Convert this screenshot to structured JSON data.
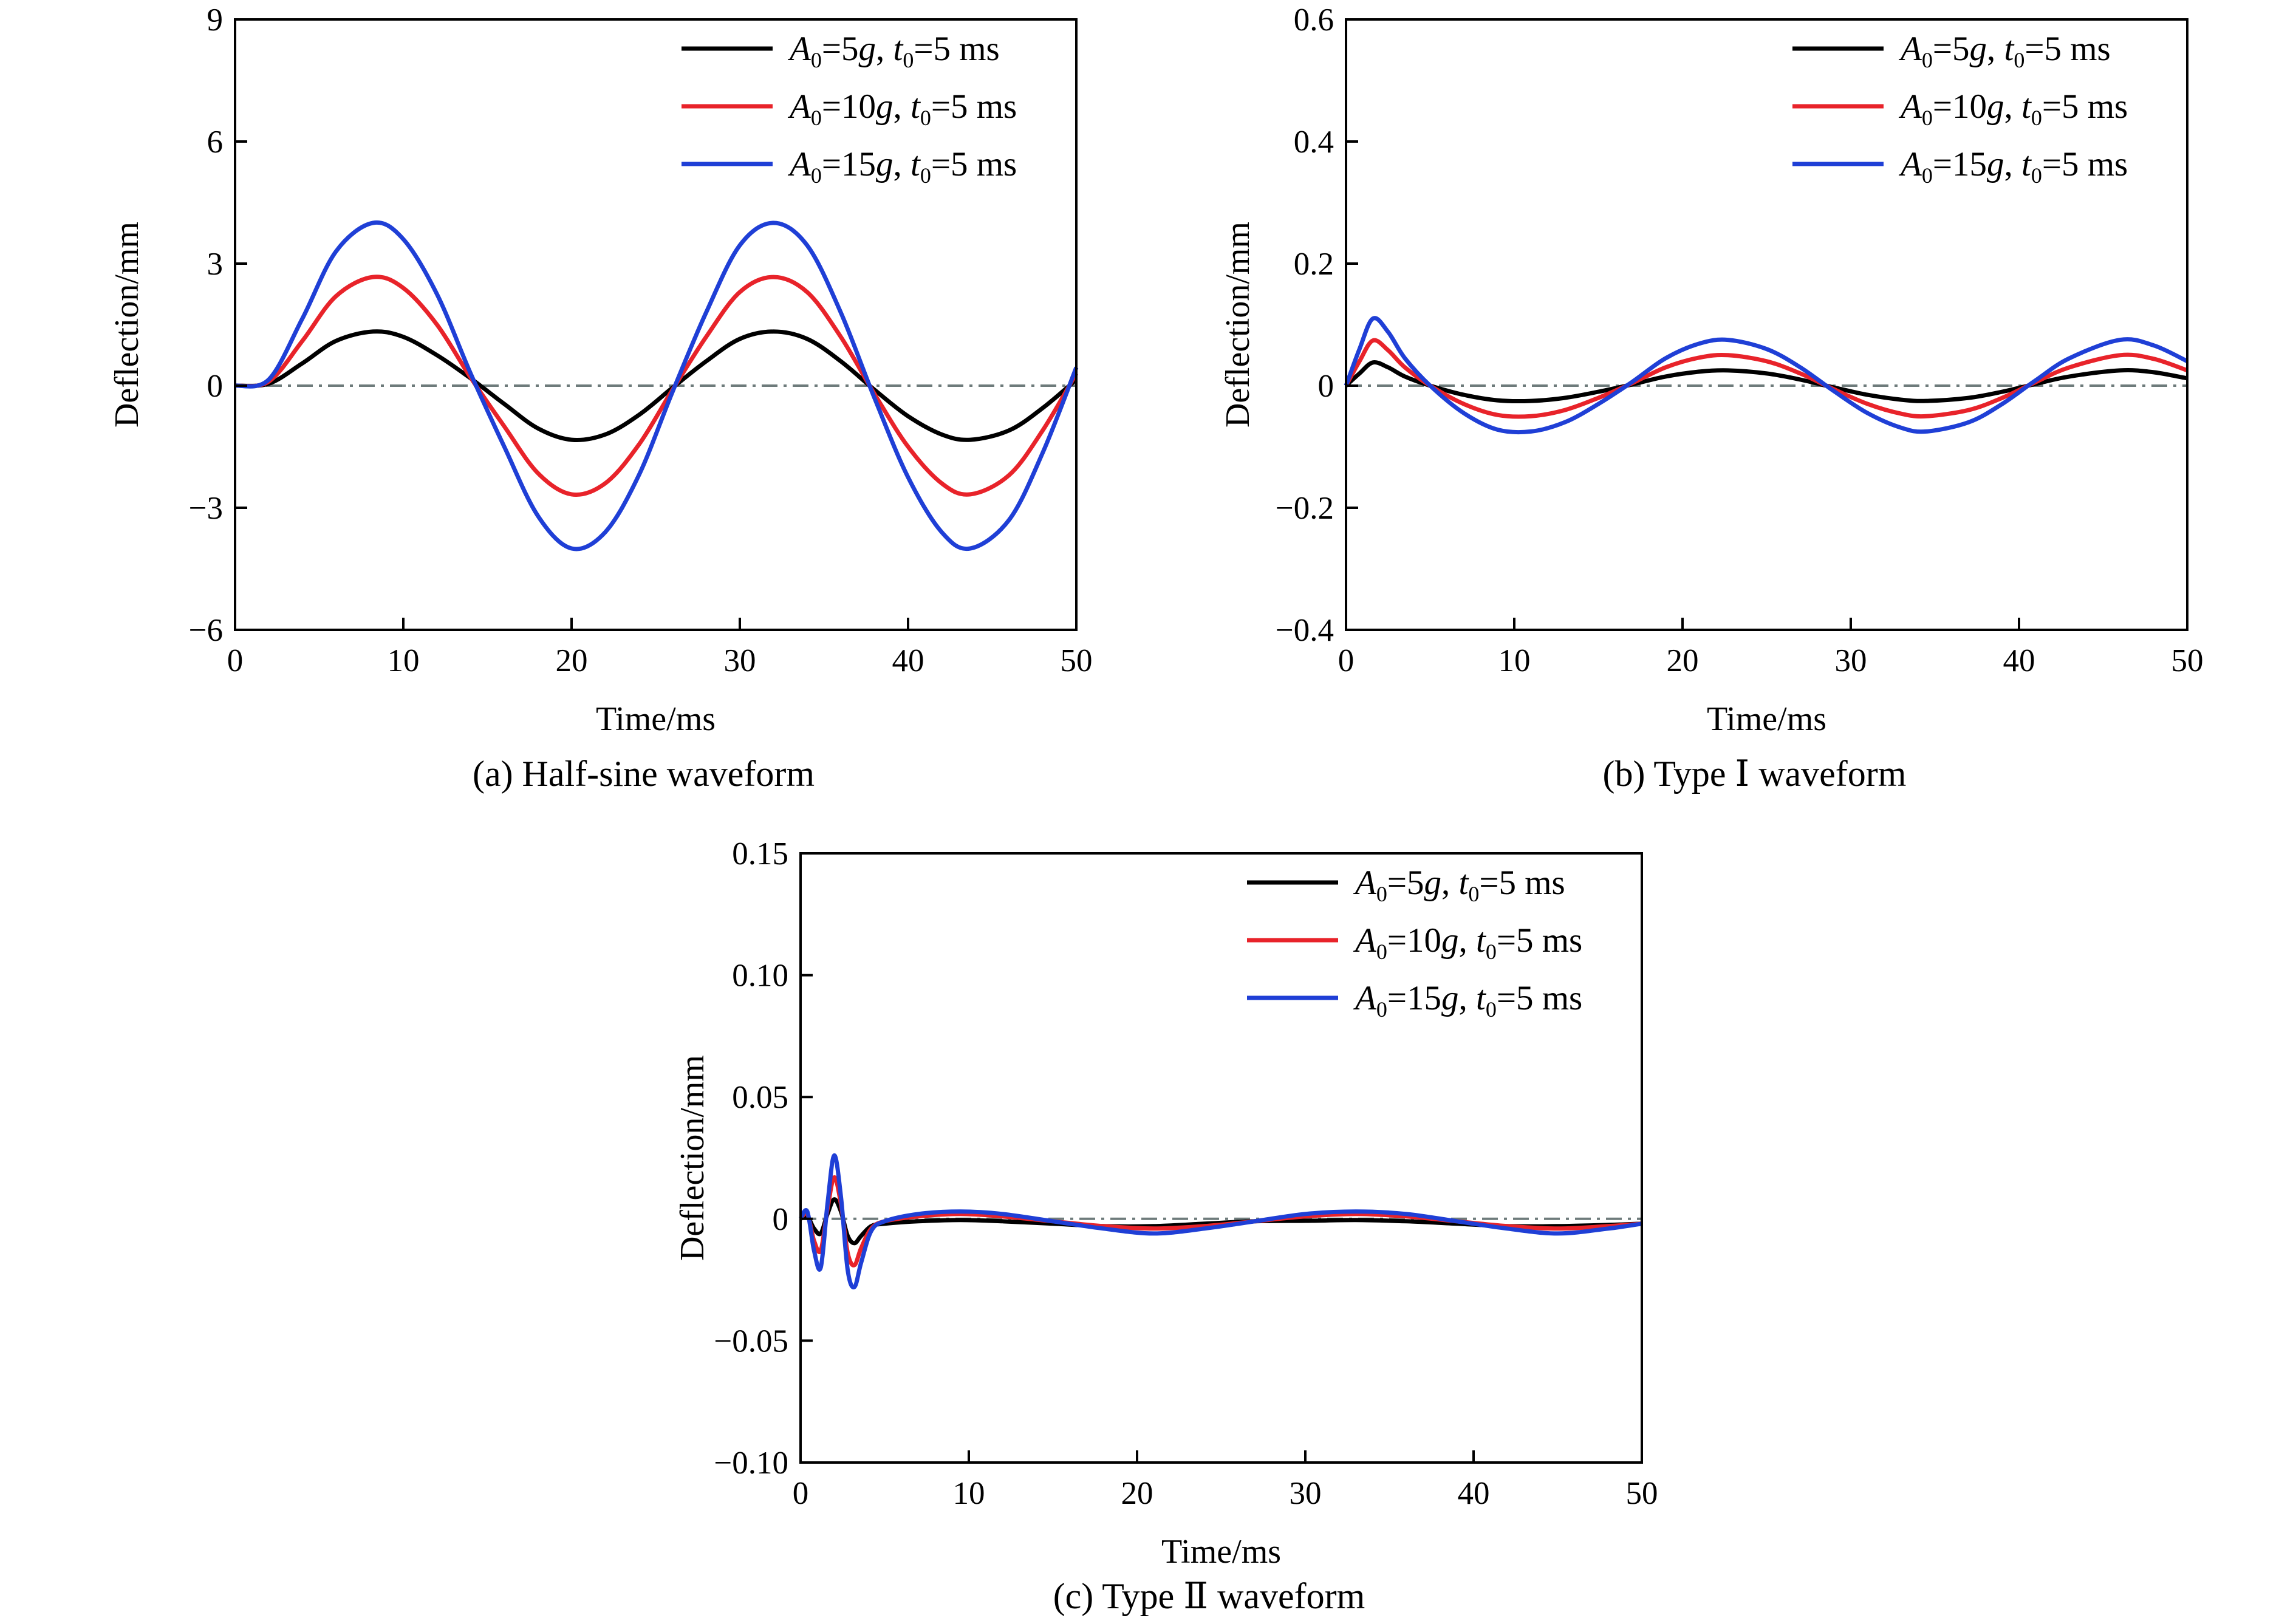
{
  "chart_data": [
    {
      "type": "line",
      "caption": "(a) Half-sine waveform",
      "xlabel": "Time/ms",
      "ylabel": "Deflection/mm",
      "xlim": [
        0,
        50
      ],
      "ylim": [
        -6,
        9
      ],
      "xticks": [
        0,
        10,
        20,
        30,
        40,
        50
      ],
      "yticks": [
        -6,
        -3,
        0,
        3,
        6,
        9
      ],
      "ytick_labels": [
        "−6",
        "−3",
        "0",
        "3",
        "6",
        "9"
      ],
      "xtick_labels": [
        "0",
        "10",
        "20",
        "30",
        "40",
        "50"
      ],
      "zero_line": true,
      "legend_position": "top-right",
      "series": [
        {
          "name": "A0=5g, t0=5 ms",
          "color": "#000000",
          "x": [
            0,
            2,
            4,
            6,
            8.2,
            10,
            12,
            14,
            16,
            18,
            20,
            22,
            24,
            26,
            28,
            30,
            32,
            34,
            36,
            38,
            40,
            42,
            43.7,
            46,
            48,
            50
          ],
          "y": [
            0,
            0.05,
            0.55,
            1.1,
            1.33,
            1.2,
            0.75,
            0.18,
            -0.45,
            -1.05,
            -1.33,
            -1.2,
            -0.72,
            -0.05,
            0.6,
            1.15,
            1.33,
            1.15,
            0.6,
            -0.1,
            -0.75,
            -1.2,
            -1.33,
            -1.1,
            -0.55,
            0.15
          ]
        },
        {
          "name": "A0=10g, t0=5 ms",
          "color": "#e8232a",
          "x": [
            0,
            2,
            4,
            6,
            8.2,
            10,
            12,
            14,
            16,
            18,
            20,
            22,
            24,
            26,
            28,
            30,
            32,
            34,
            36,
            38,
            40,
            42,
            43.7,
            46,
            48,
            50
          ],
          "y": [
            0,
            0.1,
            1.1,
            2.2,
            2.67,
            2.4,
            1.5,
            0.2,
            -1.0,
            -2.15,
            -2.67,
            -2.4,
            -1.45,
            -0.1,
            1.2,
            2.3,
            2.67,
            2.3,
            1.2,
            -0.2,
            -1.5,
            -2.4,
            -2.67,
            -2.2,
            -1.1,
            0.3
          ]
        },
        {
          "name": "A0=15g, t0=5 ms",
          "color": "#1f3fd6",
          "x": [
            0,
            2,
            4,
            6,
            8.2,
            10,
            12,
            14,
            16,
            18,
            20,
            22,
            24,
            26,
            28,
            30,
            32,
            34,
            36,
            38,
            40,
            42,
            43.7,
            46,
            48,
            50
          ],
          "y": [
            0,
            0.15,
            1.65,
            3.3,
            4.0,
            3.6,
            2.25,
            0.3,
            -1.5,
            -3.2,
            -4.0,
            -3.6,
            -2.2,
            -0.15,
            1.8,
            3.45,
            4.0,
            3.45,
            1.8,
            -0.3,
            -2.25,
            -3.6,
            -4.0,
            -3.3,
            -1.65,
            0.45
          ]
        }
      ]
    },
    {
      "type": "line",
      "caption": "(b) Type Ⅰ waveform",
      "xlabel": "Time/ms",
      "ylabel": "Deflection/mm",
      "xlim": [
        0,
        50
      ],
      "ylim": [
        -0.4,
        0.6
      ],
      "xticks": [
        0,
        10,
        20,
        30,
        40,
        50
      ],
      "yticks": [
        -0.4,
        -0.2,
        0,
        0.2,
        0.4,
        0.6
      ],
      "ytick_labels": [
        "−0.4",
        "−0.2",
        "0",
        "0.2",
        "0.4",
        "0.6"
      ],
      "xtick_labels": [
        "0",
        "10",
        "20",
        "30",
        "40",
        "50"
      ],
      "zero_line": true,
      "legend_position": "top-right",
      "series": [
        {
          "name": "A0=5g, t0=5 ms",
          "color": "#000000",
          "x": [
            0,
            0.8,
            1.6,
            2.5,
            3.5,
            5,
            7,
            9,
            11,
            13,
            15,
            17,
            19,
            21,
            22.7,
            25,
            27,
            29,
            31,
            33,
            34.5,
            37,
            39,
            41,
            43,
            46,
            48,
            50
          ],
          "y": [
            0,
            0.02,
            0.038,
            0.03,
            0.015,
            0.0,
            -0.015,
            -0.024,
            -0.025,
            -0.02,
            -0.01,
            0.002,
            0.015,
            0.023,
            0.025,
            0.02,
            0.01,
            -0.003,
            -0.015,
            -0.023,
            -0.025,
            -0.02,
            -0.01,
            0.003,
            0.015,
            0.025,
            0.022,
            0.012
          ]
        },
        {
          "name": "A0=10g, t0=5 ms",
          "color": "#e8232a",
          "x": [
            0,
            0.8,
            1.6,
            2.5,
            3.5,
            5,
            7,
            9,
            11,
            13,
            15,
            17,
            19,
            21,
            22.7,
            25,
            27,
            29,
            31,
            33,
            34.5,
            37,
            39,
            41,
            43,
            46,
            48,
            50
          ],
          "y": [
            0,
            0.04,
            0.074,
            0.058,
            0.03,
            0.0,
            -0.03,
            -0.048,
            -0.05,
            -0.04,
            -0.02,
            0.004,
            0.03,
            0.046,
            0.05,
            0.04,
            0.02,
            -0.006,
            -0.03,
            -0.046,
            -0.05,
            -0.04,
            -0.02,
            0.006,
            0.03,
            0.05,
            0.044,
            0.025
          ]
        },
        {
          "name": "A0=15g, t0=5 ms",
          "color": "#1f3fd6",
          "x": [
            0,
            0.8,
            1.6,
            2.5,
            3.5,
            5,
            7,
            9,
            11,
            13,
            15,
            17,
            19,
            21,
            22.7,
            25,
            27,
            29,
            31,
            33,
            34.5,
            37,
            39,
            41,
            43,
            46,
            48,
            50
          ],
          "y": [
            0,
            0.06,
            0.11,
            0.088,
            0.045,
            0.0,
            -0.045,
            -0.072,
            -0.075,
            -0.06,
            -0.03,
            0.006,
            0.045,
            0.069,
            0.075,
            0.06,
            0.03,
            -0.009,
            -0.045,
            -0.069,
            -0.075,
            -0.06,
            -0.03,
            0.009,
            0.045,
            0.075,
            0.066,
            0.04
          ]
        }
      ]
    },
    {
      "type": "line",
      "caption": "(c) Type Ⅱ waveform",
      "xlabel": "Time/ms",
      "ylabel": "Deflection/mm",
      "xlim": [
        0,
        50
      ],
      "ylim": [
        -0.1,
        0.15
      ],
      "xticks": [
        0,
        10,
        20,
        30,
        40,
        50
      ],
      "yticks": [
        -0.1,
        -0.05,
        0,
        0.05,
        0.1,
        0.15
      ],
      "ytick_labels": [
        "−0.10",
        "−0.05",
        "0",
        "0.05",
        "0.10",
        "0.15"
      ],
      "xtick_labels": [
        "0",
        "10",
        "20",
        "30",
        "40",
        "50"
      ],
      "zero_line": true,
      "legend_position": "top-right",
      "series": [
        {
          "name": "A0=5g, t0=5 ms",
          "color": "#000000",
          "x": [
            0,
            0.4,
            0.8,
            1.2,
            1.6,
            2.0,
            2.4,
            2.8,
            3.2,
            3.6,
            4.2,
            5,
            7,
            9.5,
            12,
            15,
            18,
            21,
            24,
            27,
            30,
            33,
            36,
            39,
            42,
            45,
            48,
            50
          ],
          "y": [
            0,
            0.001,
            -0.004,
            -0.006,
            0.002,
            0.008,
            0.003,
            -0.007,
            -0.01,
            -0.007,
            -0.003,
            -0.002,
            -0.001,
            -0.0005,
            -0.001,
            -0.002,
            -0.003,
            -0.003,
            -0.002,
            -0.001,
            -0.0008,
            -0.0005,
            -0.001,
            -0.002,
            -0.003,
            -0.003,
            -0.0025,
            -0.002
          ]
        },
        {
          "name": "A0=10g, t0=5 ms",
          "color": "#e8232a",
          "x": [
            0,
            0.4,
            0.8,
            1.2,
            1.6,
            2.0,
            2.4,
            2.8,
            3.2,
            3.6,
            4.2,
            5,
            7,
            9.5,
            12,
            15,
            18,
            21,
            24,
            27,
            30,
            33,
            36,
            39,
            42,
            45,
            48,
            50
          ],
          "y": [
            0,
            0.002,
            -0.009,
            -0.013,
            0.004,
            0.017,
            0.006,
            -0.014,
            -0.019,
            -0.012,
            -0.004,
            -0.001,
            0.001,
            0.002,
            0.001,
            -0.001,
            -0.003,
            -0.004,
            -0.003,
            -0.001,
            0.001,
            0.002,
            0.001,
            -0.001,
            -0.003,
            -0.004,
            -0.003,
            -0.002
          ]
        },
        {
          "name": "A0=15g, t0=5 ms",
          "color": "#1f3fd6",
          "x": [
            0,
            0.4,
            0.8,
            1.2,
            1.6,
            2.0,
            2.4,
            2.8,
            3.2,
            3.6,
            4.2,
            5,
            7,
            9.5,
            12,
            15,
            18,
            21,
            24,
            27,
            30,
            33,
            36,
            39,
            42,
            45,
            48,
            50
          ],
          "y": [
            0,
            0.003,
            -0.013,
            -0.02,
            0.006,
            0.026,
            0.009,
            -0.021,
            -0.028,
            -0.018,
            -0.005,
            -0.001,
            0.002,
            0.003,
            0.002,
            -0.001,
            -0.004,
            -0.006,
            -0.004,
            -0.001,
            0.002,
            0.003,
            0.002,
            -0.001,
            -0.004,
            -0.006,
            -0.004,
            -0.002
          ]
        }
      ]
    }
  ]
}
